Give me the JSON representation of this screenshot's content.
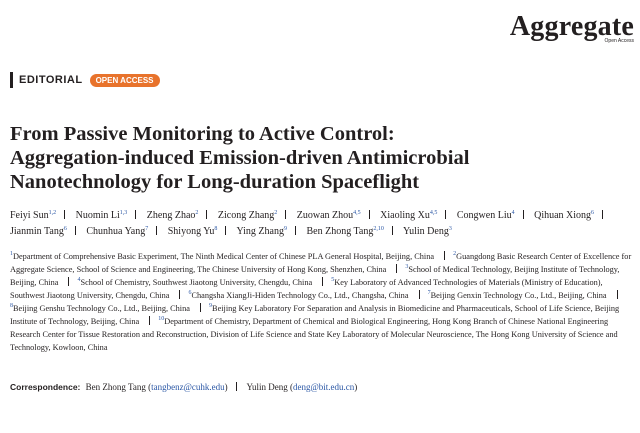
{
  "header": {
    "journal": "Aggregate",
    "journal_tag": "Open Access",
    "section": "EDITORIAL",
    "access": "OPEN ACCESS"
  },
  "title": [
    "From Passive Monitoring to Active Control:",
    "Aggregation-induced Emission-driven Antimicrobial",
    "Nanotechnology for Long-duration Spaceflight"
  ],
  "authors": [
    {
      "name": "Feiyi Sun",
      "affil": "1,2"
    },
    {
      "name": "Nuomin Li",
      "affil": "1,3"
    },
    {
      "name": "Zheng Zhao",
      "affil": "2"
    },
    {
      "name": "Zicong Zhang",
      "affil": "2"
    },
    {
      "name": "Zuowan Zhou",
      "affil": "4,5"
    },
    {
      "name": "Xiaoling Xu",
      "affil": "4,5"
    },
    {
      "name": "Congwen Liu",
      "affil": "4"
    },
    {
      "name": "Qihuan Xiong",
      "affil": "6"
    },
    {
      "name": "Jianmin Tang",
      "affil": "6"
    },
    {
      "name": "Chunhua Yang",
      "affil": "7"
    },
    {
      "name": "Shiyong Yu",
      "affil": "8"
    },
    {
      "name": "Ying Zhang",
      "affil": "9"
    },
    {
      "name": "Ben Zhong Tang",
      "affil": "2,10"
    },
    {
      "name": "Yulin Deng",
      "affil": "3"
    }
  ],
  "affiliations": [
    {
      "num": "1",
      "text": "Department of Comprehensive Basic Experiment, The Ninth Medical Center of Chinese PLA General Hospital, Beijing, China"
    },
    {
      "num": "2",
      "text": "Guangdong Basic Research Center of Excellence for Aggregate Science, School of Science and Engineering, The Chinese University of Hong Kong, Shenzhen, China"
    },
    {
      "num": "3",
      "text": "School of Medical Technology, Beijing Institute of Technology, Beijing, China"
    },
    {
      "num": "4",
      "text": "School of Chemistry, Southwest Jiaotong University, Chengdu, China"
    },
    {
      "num": "5",
      "text": "Key Laboratory of Advanced Technologies of Materials (Ministry of Education), Southwest Jiaotong University, Chengdu, China"
    },
    {
      "num": "6",
      "text": "Changsha XiangJi-Hiden Technology Co., Ltd., Changsha, China"
    },
    {
      "num": "7",
      "text": "Beijing Genxin Technology Co., Ltd., Beijing, China"
    },
    {
      "num": "8",
      "text": "Beijing Genshu Technology Co., Ltd., Beijing, China"
    },
    {
      "num": "9",
      "text": "Beijing Key Laboratory For Separation and Analysis in Biomedicine and Pharmaceuticals, School of Life Science, Beijing Institute of Technology, Beijing, China"
    },
    {
      "num": "10",
      "text": "Department of Chemistry, Department of Chemical and Biological Engineering, Hong Kong Branch of Chinese National Engineering Research Center for Tissue Restoration and Reconstruction, Division of Life Science and State Key Laboratory of Molecular Neuroscience, The Hong Kong University of Science and Technology, Kowloon, China"
    }
  ],
  "correspondence": {
    "label": "Correspondence:",
    "contacts": [
      {
        "name": "Ben Zhong Tang",
        "email": "tangbenz@cuhk.edu"
      },
      {
        "name": "Yulin Deng",
        "email": "deng@bit.edu.cn"
      }
    ]
  }
}
